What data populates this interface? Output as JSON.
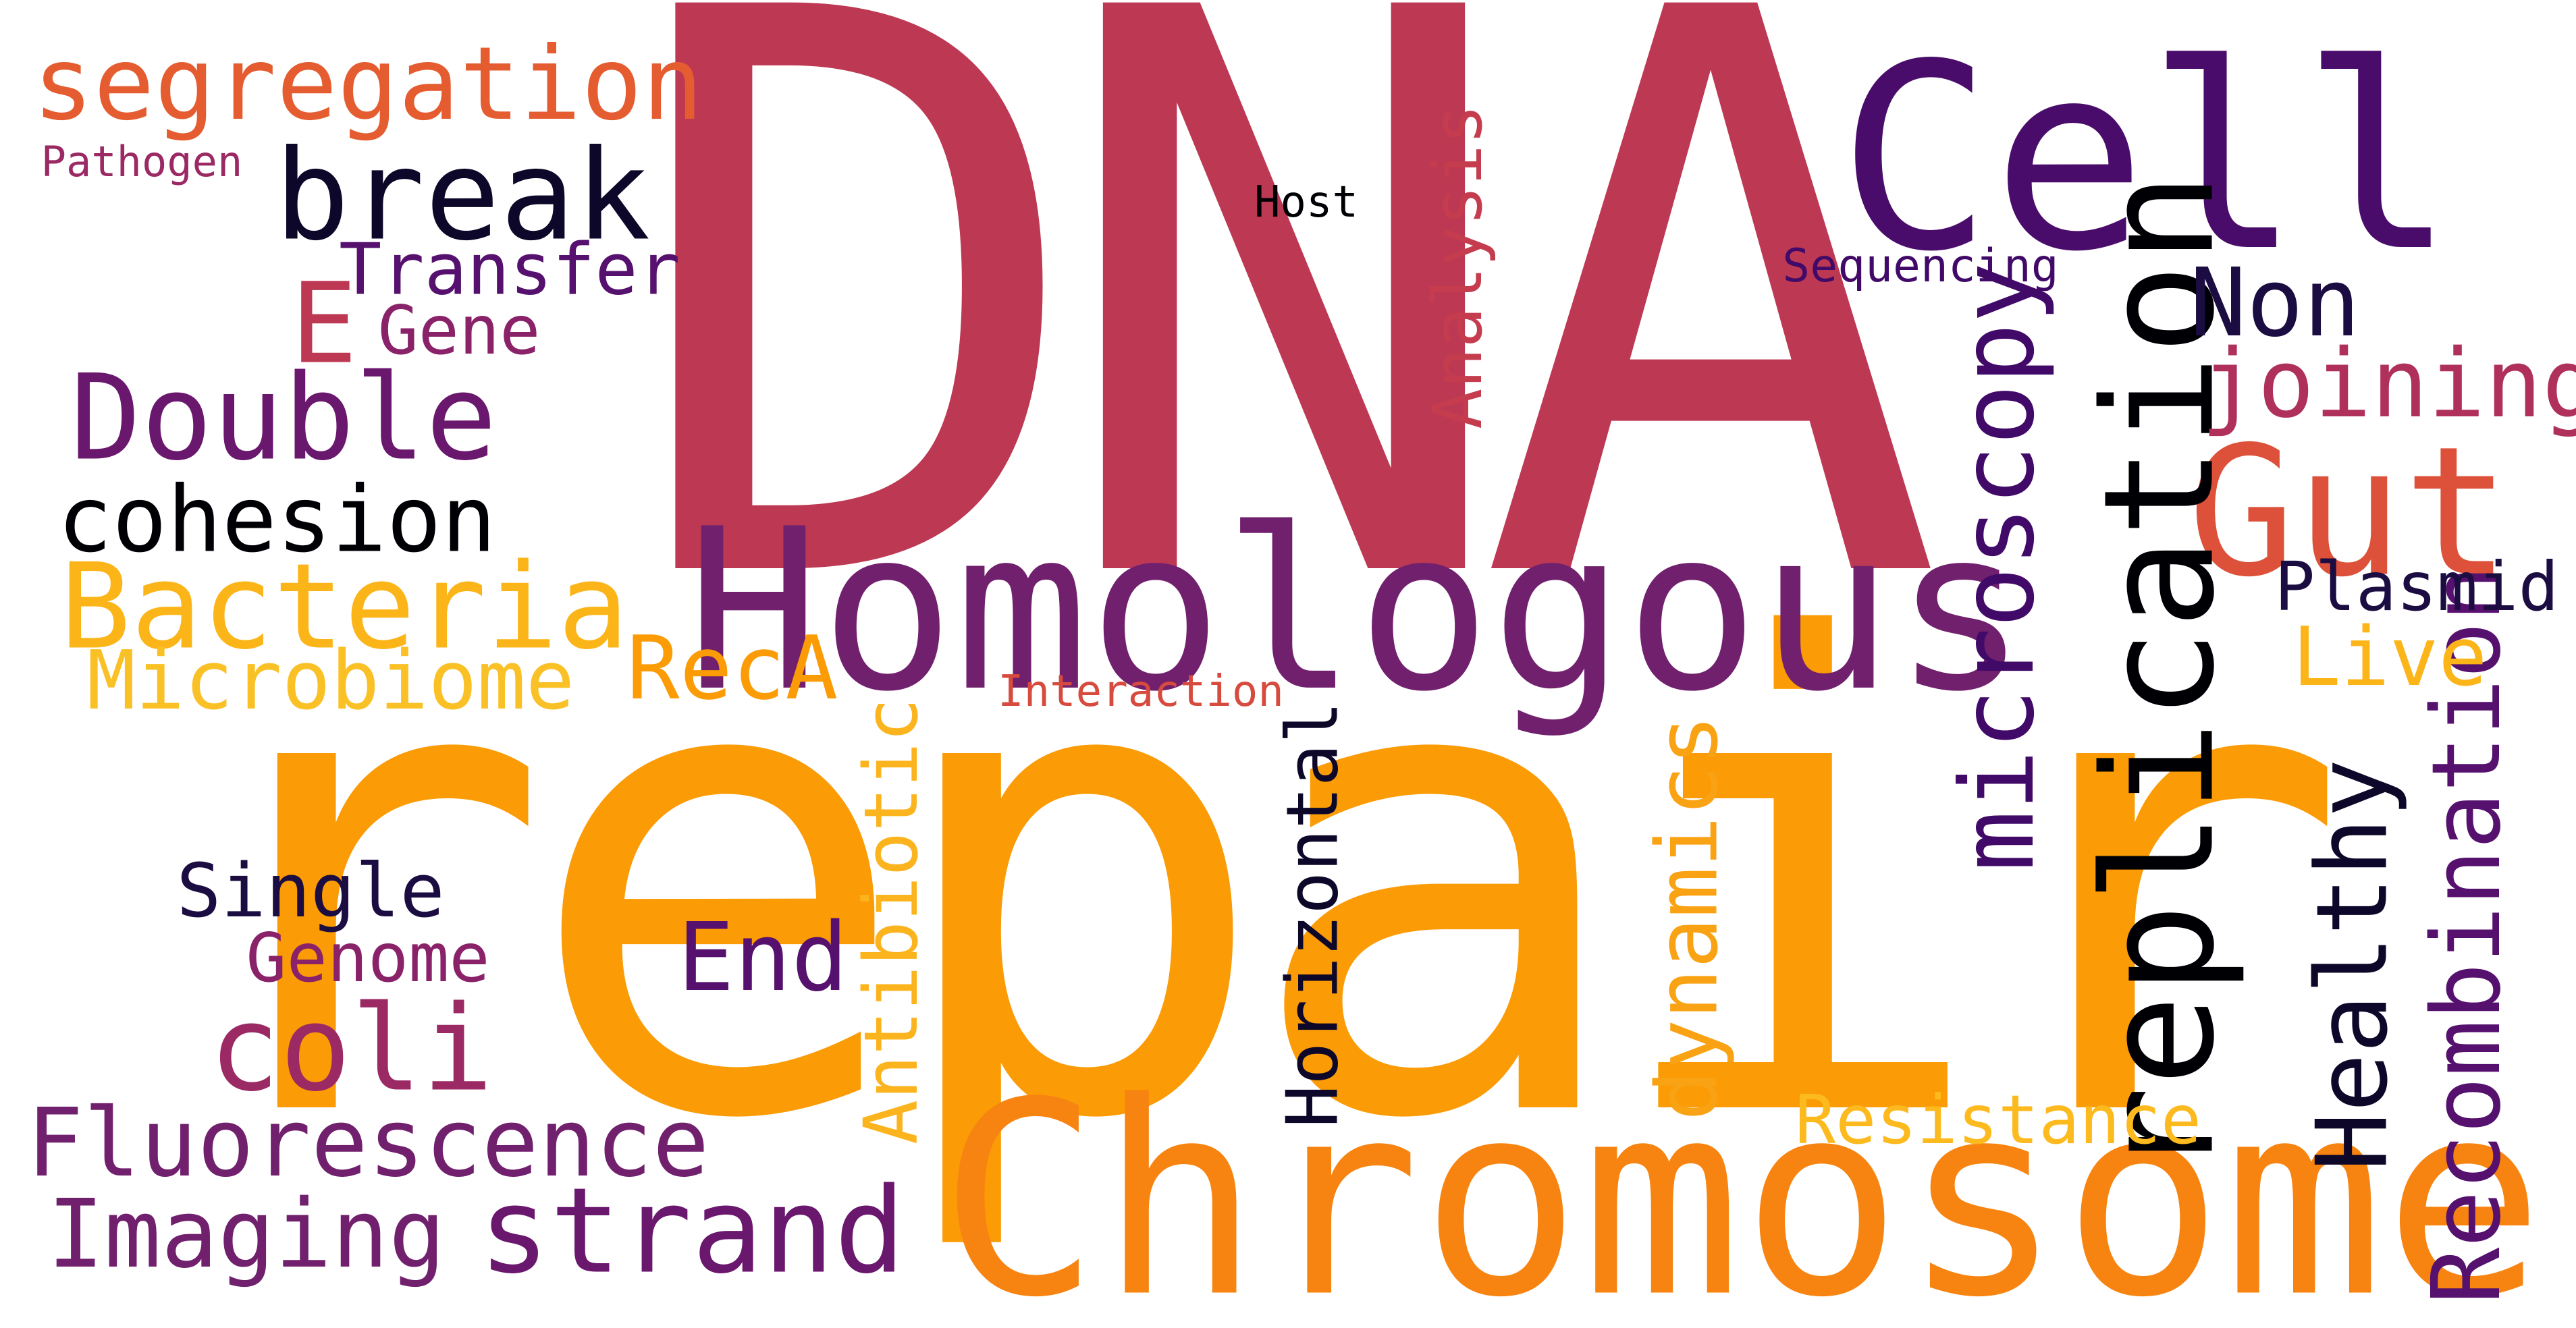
{
  "words": {
    "dna": {
      "text": "DNA",
      "color": "#BD3853"
    },
    "repair": {
      "text": "repair",
      "color": "#FB9B06"
    },
    "chromosome": {
      "text": "Chromosome",
      "color": "#F78410"
    },
    "homologous": {
      "text": "Homologous",
      "color": "#71206E"
    },
    "cell": {
      "text": "Cell",
      "color": "#4A0C6B"
    },
    "gut": {
      "text": "Gut",
      "color": "#DD513A"
    },
    "replication": {
      "text": "replication",
      "color": "#000004"
    },
    "microscopy": {
      "text": "microscopy",
      "color": "#420A68"
    },
    "recombination": {
      "text": "Recombination",
      "color": "#56106E"
    },
    "healthy": {
      "text": "Healthy",
      "color": "#0D0829"
    },
    "non": {
      "text": "Non",
      "color": "#1B0C41"
    },
    "joining": {
      "text": "joining",
      "color": "#AF315B"
    },
    "plasmid": {
      "text": "Plasmid",
      "color": "#1B0C41"
    },
    "live": {
      "text": "Live",
      "color": "#FCB519"
    },
    "sequencing": {
      "text": "Sequencing",
      "color": "#420A68"
    },
    "host": {
      "text": "Host",
      "color": "#000004"
    },
    "resistance": {
      "text": "Resistance",
      "color": "#FCBA1F"
    },
    "analysis": {
      "text": "Analysis",
      "color": "#C43C4E"
    },
    "interaction": {
      "text": "Interaction",
      "color": "#D74B3F"
    },
    "antibiotic": {
      "text": "Antibiotic",
      "color": "#FBB41E"
    },
    "dynamics": {
      "text": "dynamics",
      "color": "#F9A213"
    },
    "horizontal": {
      "text": "Horizontal",
      "color": "#0D0829"
    },
    "end": {
      "text": "End",
      "color": "#56106E"
    },
    "reca": {
      "text": "RecA",
      "color": "#FB9B06"
    },
    "strand": {
      "text": "strand",
      "color": "#6A176E"
    },
    "segregation": {
      "text": "segregation",
      "color": "#E55C30"
    },
    "pathogen": {
      "text": "Pathogen",
      "color": "#9B2964"
    },
    "break": {
      "text": "break",
      "color": "#0D0829"
    },
    "transfer": {
      "text": "Transfer",
      "color": "#56106E"
    },
    "e": {
      "text": "E",
      "color": "#BD3853"
    },
    "gene": {
      "text": "Gene",
      "color": "#8A226A"
    },
    "double": {
      "text": "Double",
      "color": "#6A176E"
    },
    "cohesion": {
      "text": "cohesion",
      "color": "#000004"
    },
    "bacteria": {
      "text": "Bacteria",
      "color": "#FCB519"
    },
    "microbiome": {
      "text": "Microbiome",
      "color": "#FAC127"
    },
    "single": {
      "text": "Single",
      "color": "#1B0C41"
    },
    "genome": {
      "text": "Genome",
      "color": "#8A226A"
    },
    "coli": {
      "text": "coli",
      "color": "#9B2964"
    },
    "fluorescence": {
      "text": "Fluorescence",
      "color": "#71206E"
    },
    "imaging": {
      "text": "Imaging",
      "color": "#71206E"
    }
  }
}
